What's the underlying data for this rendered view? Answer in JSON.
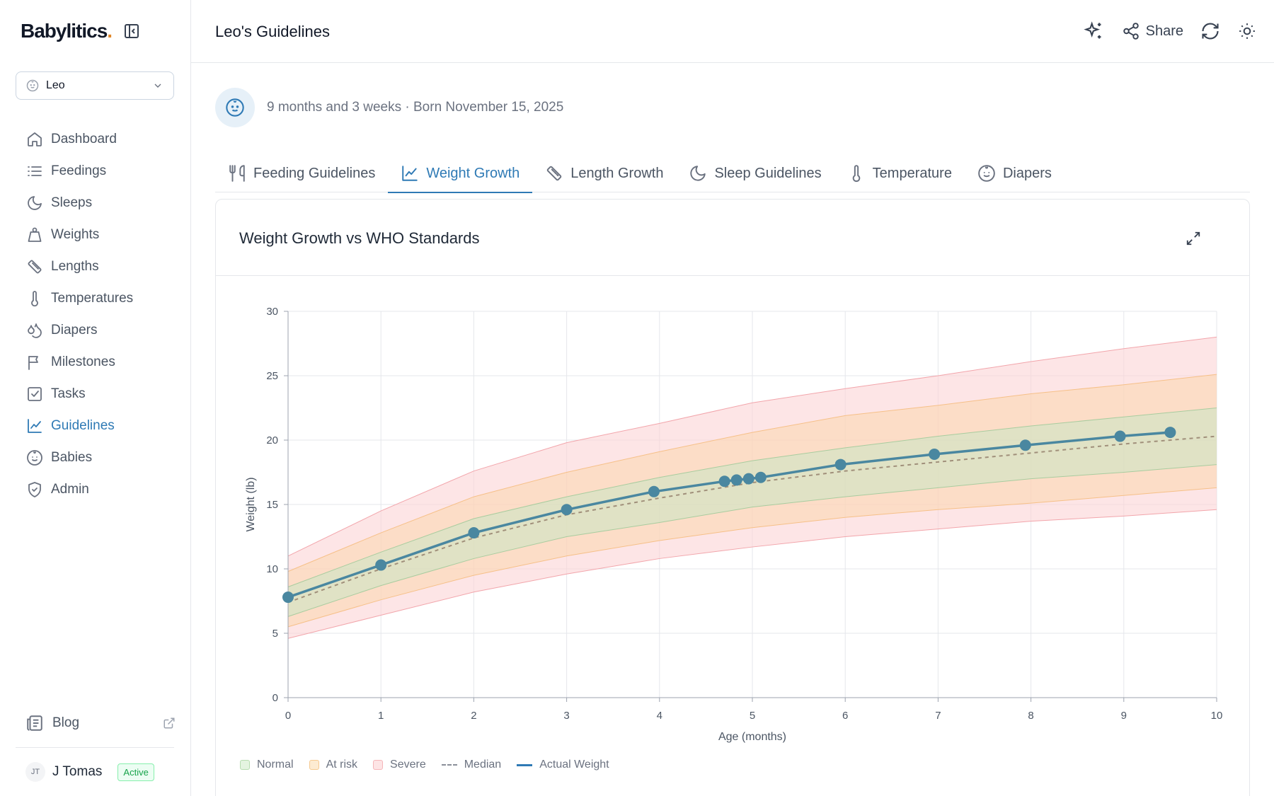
{
  "app": {
    "logo_text": "Babylitics",
    "logo_dot": ".",
    "page_title": "Leo's Guidelines"
  },
  "baby_select": {
    "value": "Leo"
  },
  "sidebar": {
    "items": [
      {
        "label": "Dashboard",
        "icon": "home-icon"
      },
      {
        "label": "Feedings",
        "icon": "list-icon"
      },
      {
        "label": "Sleeps",
        "icon": "moon-icon"
      },
      {
        "label": "Weights",
        "icon": "weight-icon"
      },
      {
        "label": "Lengths",
        "icon": "ruler-icon"
      },
      {
        "label": "Temperatures",
        "icon": "thermometer-icon"
      },
      {
        "label": "Diapers",
        "icon": "droplets-icon"
      },
      {
        "label": "Milestones",
        "icon": "flag-icon"
      },
      {
        "label": "Tasks",
        "icon": "checkbox-icon"
      },
      {
        "label": "Guidelines",
        "icon": "chart-line-icon",
        "active": true
      },
      {
        "label": "Babies",
        "icon": "baby-icon"
      },
      {
        "label": "Admin",
        "icon": "shield-icon"
      }
    ],
    "blog_label": "Blog",
    "user": {
      "initials": "JT",
      "name": "J Tomas",
      "status": "Active"
    }
  },
  "header": {
    "share_label": "Share"
  },
  "baby_info": {
    "meta": "9 months and 3 weeks · Born November 15, 2025"
  },
  "tabs": [
    {
      "label": "Feeding Guidelines",
      "icon": "utensils-icon"
    },
    {
      "label": "Weight Growth",
      "icon": "chart-line-icon",
      "active": true
    },
    {
      "label": "Length Growth",
      "icon": "ruler-icon"
    },
    {
      "label": "Sleep Guidelines",
      "icon": "moon-icon"
    },
    {
      "label": "Temperature",
      "icon": "thermometer-icon"
    },
    {
      "label": "Diapers",
      "icon": "baby-icon"
    }
  ],
  "card": {
    "title": "Weight Growth vs WHO Standards"
  },
  "colors": {
    "accent": "#2f7ab5",
    "actual": "#4a87a0",
    "median": "#a08f7a",
    "normal_fill": "#c9e5c2",
    "at_risk_fill": "#fbd6a8",
    "severe_fill": "#fbd3d5"
  },
  "chart_data": {
    "type": "line",
    "xlabel": "Age (months)",
    "ylabel": "Weight (lb)",
    "xlim": [
      0,
      10
    ],
    "ylim": [
      0,
      30
    ],
    "x_ticks": [
      0,
      1,
      2,
      3,
      4,
      5,
      6,
      7,
      8,
      9,
      10
    ],
    "y_ticks": [
      0,
      5,
      10,
      15,
      20,
      25,
      30
    ],
    "grid": true,
    "legend_position": "bottom-left",
    "legend": [
      "Normal",
      "At risk",
      "Severe",
      "Median",
      "Actual Weight"
    ],
    "bands": {
      "x": [
        0,
        1,
        2,
        3,
        4,
        5,
        6,
        7,
        8,
        9,
        10
      ],
      "severe_upper": [
        11.0,
        14.5,
        17.6,
        19.8,
        21.3,
        22.9,
        24.0,
        25.0,
        26.1,
        27.1,
        28.0
      ],
      "at_risk_upper": [
        9.8,
        12.8,
        15.6,
        17.5,
        19.1,
        20.6,
        21.9,
        22.7,
        23.6,
        24.3,
        25.1
      ],
      "normal_upper": [
        8.6,
        11.3,
        13.9,
        15.6,
        17.1,
        18.4,
        19.4,
        20.3,
        21.1,
        21.8,
        22.5
      ],
      "median": [
        7.4,
        10.0,
        12.4,
        14.2,
        15.5,
        16.7,
        17.6,
        18.3,
        19.0,
        19.7,
        20.3
      ],
      "normal_lower": [
        6.3,
        8.7,
        10.8,
        12.5,
        13.6,
        14.8,
        15.6,
        16.3,
        17.0,
        17.5,
        18.1
      ],
      "at_risk_lower": [
        5.5,
        7.6,
        9.5,
        11.0,
        12.2,
        13.2,
        14.0,
        14.6,
        15.1,
        15.7,
        16.3
      ],
      "severe_lower": [
        4.6,
        6.4,
        8.2,
        9.6,
        10.8,
        11.7,
        12.5,
        13.1,
        13.7,
        14.1,
        14.6
      ]
    },
    "series": [
      {
        "name": "Actual Weight",
        "x": [
          0,
          1,
          2,
          3,
          3.94,
          4.7,
          4.83,
          4.96,
          5.09,
          5.95,
          6.96,
          7.94,
          8.96,
          9.5
        ],
        "y": [
          7.8,
          10.3,
          12.8,
          14.6,
          16.0,
          16.8,
          16.9,
          17.0,
          17.1,
          18.1,
          18.9,
          19.6,
          20.3,
          20.6
        ]
      }
    ]
  }
}
